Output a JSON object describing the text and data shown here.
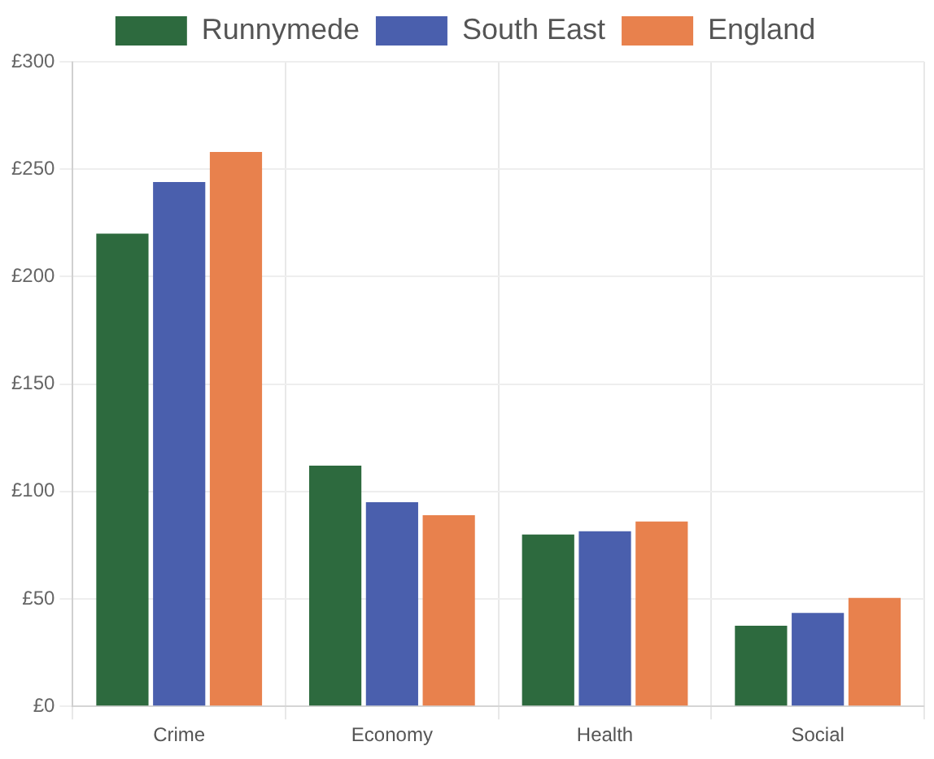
{
  "chart_data": {
    "type": "bar",
    "categories": [
      "Crime",
      "Economy",
      "Health",
      "Social"
    ],
    "series": [
      {
        "name": "Runnymede",
        "color": "#2d6a3e",
        "values": [
          220,
          112,
          80,
          37.5
        ]
      },
      {
        "name": "South East",
        "color": "#4a5fad",
        "values": [
          244,
          95,
          81.5,
          43.5
        ]
      },
      {
        "name": "England",
        "color": "#e8814d",
        "values": [
          258,
          89,
          86,
          50.5
        ]
      }
    ],
    "ylim": [
      0,
      300
    ],
    "yticks": [
      {
        "value": 0,
        "label": "£0"
      },
      {
        "value": 50,
        "label": "£50"
      },
      {
        "value": 100,
        "label": "£100"
      },
      {
        "value": 150,
        "label": "£150"
      },
      {
        "value": 200,
        "label": "£200"
      },
      {
        "value": 250,
        "label": "£250"
      },
      {
        "value": 300,
        "label": "£300"
      }
    ],
    "grid": true,
    "legend": "top"
  }
}
